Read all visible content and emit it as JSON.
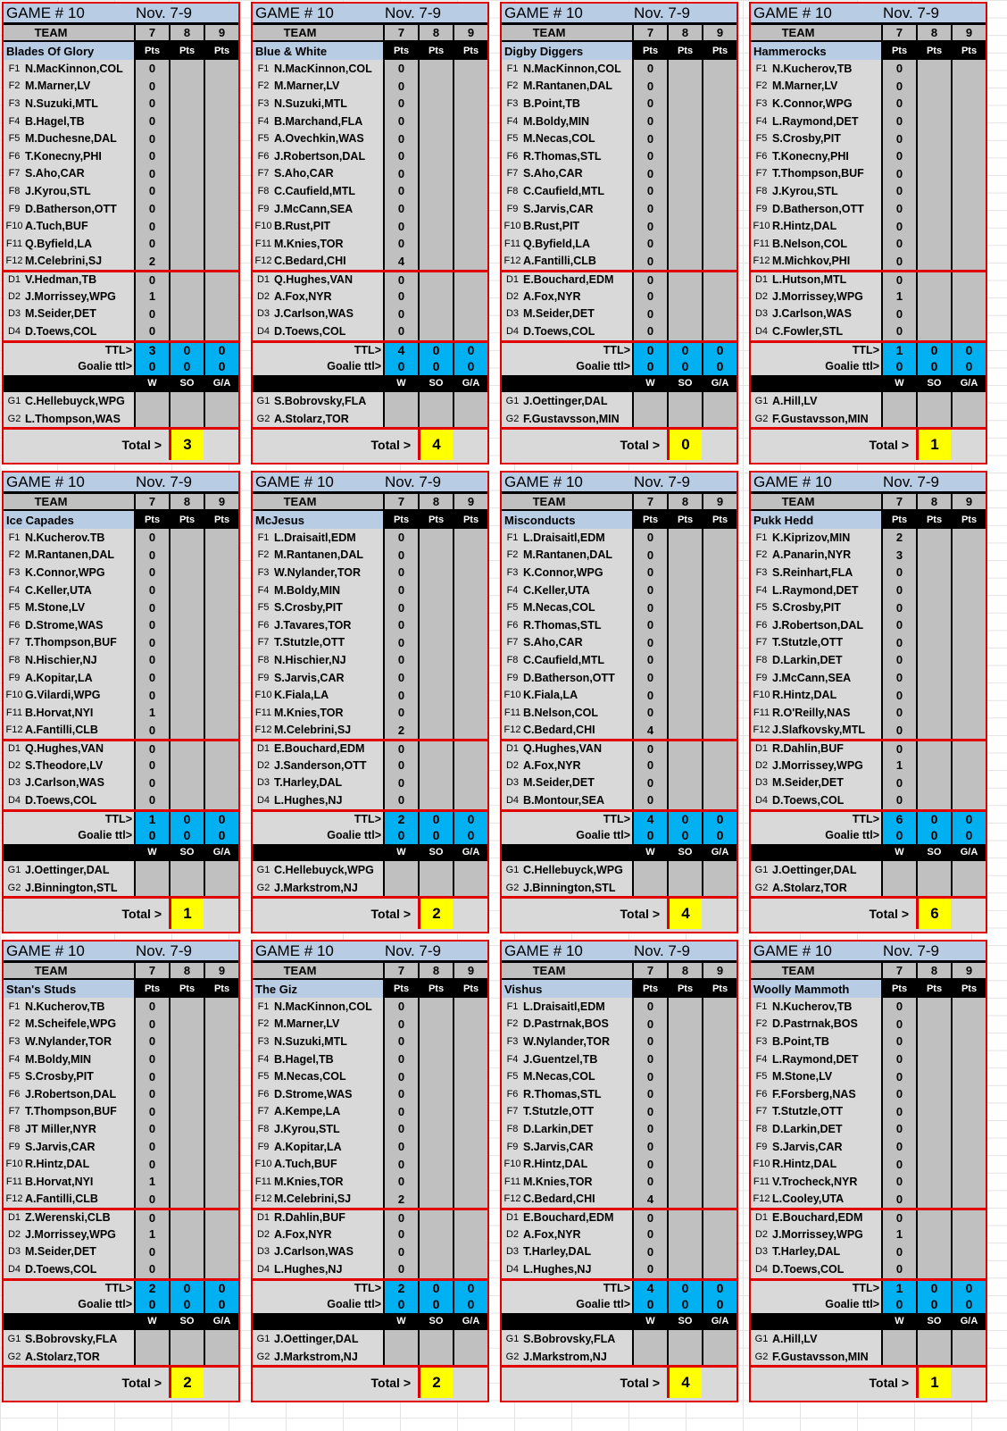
{
  "common": {
    "game": "GAME # 10",
    "dates": "Nov. 7-9",
    "team_header": "TEAM",
    "days": [
      "7",
      "8",
      "9"
    ],
    "pts_label": "Pts",
    "ttl_label": "TTL>",
    "goalie_ttl_label": "Goalie ttl>",
    "goalie_cols": [
      "W",
      "SO",
      "G/A"
    ],
    "total_label": "Total >",
    "forward_slots": [
      "F1",
      "F2",
      "F3",
      "F4",
      "F5",
      "F6",
      "F7",
      "F8",
      "F9",
      "F10",
      "F11",
      "F12"
    ],
    "defense_slots": [
      "D1",
      "D2",
      "D3",
      "D4"
    ],
    "goalie_slots": [
      "G1",
      "G2"
    ]
  },
  "colors": {
    "border": "#e00000",
    "title_bg": "#b8cce4",
    "ttl_bg": "#00b0f0",
    "total_bg": "#ffff00",
    "cell_bg": "#d9d9d9",
    "pts_bg": "#c0c0c0"
  },
  "teams": [
    {
      "name": "Blades Of Glory",
      "forwards": [
        "N.MacKinnon,COL",
        "M.Marner,LV",
        "N.Suzuki,MTL",
        "B.Hagel,TB",
        "M.Duchesne,DAL",
        "T.Konecny,PHI",
        "S.Aho,CAR",
        "J.Kyrou,STL",
        "D.Batherson,OTT",
        "A.Tuch,BUF",
        "Q.Byfield,LA",
        "M.Celebrini,SJ"
      ],
      "forward_pts": [
        "0",
        "0",
        "0",
        "0",
        "0",
        "0",
        "0",
        "0",
        "0",
        "0",
        "0",
        "2"
      ],
      "defense": [
        "V.Hedman,TB",
        "J.Morrissey,WPG",
        "M.Seider,DET",
        "D.Toews,COL"
      ],
      "defense_pts": [
        "0",
        "1",
        "0",
        "0"
      ],
      "ttl": [
        "3",
        "0",
        "0"
      ],
      "goalie_ttl": [
        "0",
        "0",
        "0"
      ],
      "goalies": [
        "C.Hellebuyck,WPG",
        "L.Thompson,WAS"
      ],
      "total": "3"
    },
    {
      "name": "Blue & White",
      "forwards": [
        "N.MacKinnon,COL",
        "M.Marner,LV",
        "N.Suzuki,MTL",
        "B.Marchand,FLA",
        "A.Ovechkin,WAS",
        "J.Robertson,DAL",
        "S.Aho,CAR",
        "C.Caufield,MTL",
        "J.McCann,SEA",
        "B.Rust,PIT",
        "M.Knies,TOR",
        "C.Bedard,CHI"
      ],
      "forward_pts": [
        "0",
        "0",
        "0",
        "0",
        "0",
        "0",
        "0",
        "0",
        "0",
        "0",
        "0",
        "4"
      ],
      "defense": [
        "Q.Hughes,VAN",
        "A.Fox,NYR",
        "J.Carlson,WAS",
        "D.Toews,COL"
      ],
      "defense_pts": [
        "0",
        "0",
        "0",
        "0"
      ],
      "ttl": [
        "4",
        "0",
        "0"
      ],
      "goalie_ttl": [
        "0",
        "0",
        "0"
      ],
      "goalies": [
        "S.Bobrovsky,FLA",
        "A.Stolarz,TOR"
      ],
      "total": "4"
    },
    {
      "name": "Digby Diggers",
      "forwards": [
        "N.MacKinnon,COL",
        "M.Rantanen,DAL",
        "B.Point,TB",
        "M.Boldy,MIN",
        "M.Necas,COL",
        "R.Thomas,STL",
        "S.Aho,CAR",
        "C.Caufield,MTL",
        "S.Jarvis,CAR",
        "B.Rust,PIT",
        "Q.Byfield,LA",
        "A.Fantilli,CLB"
      ],
      "forward_pts": [
        "0",
        "0",
        "0",
        "0",
        "0",
        "0",
        "0",
        "0",
        "0",
        "0",
        "0",
        "0"
      ],
      "defense": [
        "E.Bouchard,EDM",
        "A.Fox,NYR",
        "M.Seider,DET",
        "D.Toews,COL"
      ],
      "defense_pts": [
        "0",
        "0",
        "0",
        "0"
      ],
      "ttl": [
        "0",
        "0",
        "0"
      ],
      "goalie_ttl": [
        "0",
        "0",
        "0"
      ],
      "goalies": [
        "J.Oettinger,DAL",
        "F.Gustavsson,MIN"
      ],
      "total": "0"
    },
    {
      "name": "Hammerocks",
      "forwards": [
        "N.Kucherov,TB",
        "M.Marner,LV",
        "K.Connor,WPG",
        "L.Raymond,DET",
        "S.Crosby,PIT",
        "T.Konecny,PHI",
        "T.Thompson,BUF",
        "J.Kyrou,STL",
        "D.Batherson,OTT",
        "R.Hintz,DAL",
        "B.Nelson,COL",
        "M.Michkov,PHI"
      ],
      "forward_pts": [
        "0",
        "0",
        "0",
        "0",
        "0",
        "0",
        "0",
        "0",
        "0",
        "0",
        "0",
        "0"
      ],
      "defense": [
        "L.Hutson,MTL",
        "J.Morrissey,WPG",
        "J.Carlson,WAS",
        "C.Fowler,STL"
      ],
      "defense_pts": [
        "0",
        "1",
        "0",
        "0"
      ],
      "ttl": [
        "1",
        "0",
        "0"
      ],
      "goalie_ttl": [
        "0",
        "0",
        "0"
      ],
      "goalies": [
        "A.Hill,LV",
        "F.Gustavsson,MIN"
      ],
      "total": "1"
    },
    {
      "name": "Ice Capades",
      "forwards": [
        "N.Kucherov.TB",
        "M.Rantanen,DAL",
        "K.Connor,WPG",
        "C.Keller,UTA",
        "M.Stone,LV",
        "D.Strome,WAS",
        "T.Thompson,BUF",
        "N.Hischier,NJ",
        "A.Kopitar,LA",
        "G.Vilardi,WPG",
        "B.Horvat,NYI",
        "A.Fantilli,CLB"
      ],
      "forward_pts": [
        "0",
        "0",
        "0",
        "0",
        "0",
        "0",
        "0",
        "0",
        "0",
        "0",
        "1",
        "0"
      ],
      "defense": [
        "Q.Hughes,VAN",
        "S.Theodore,LV",
        "J.Carlson,WAS",
        "D.Toews,COL"
      ],
      "defense_pts": [
        "0",
        "0",
        "0",
        "0"
      ],
      "ttl": [
        "1",
        "0",
        "0"
      ],
      "goalie_ttl": [
        "0",
        "0",
        "0"
      ],
      "goalies": [
        "J.Oettinger,DAL",
        "J.Binnington,STL"
      ],
      "total": "1"
    },
    {
      "name": "McJesus",
      "forwards": [
        "L.Draisaitl,EDM",
        "M.Rantanen,DAL",
        "W.Nylander,TOR",
        "M.Boldy,MIN",
        "S.Crosby,PIT",
        "J.Tavares,TOR",
        "T.Stutzle,OTT",
        "N.Hischier,NJ",
        "S.Jarvis,CAR",
        "K.Fiala,LA",
        "M.Knies,TOR",
        "M.Celebrini,SJ"
      ],
      "forward_pts": [
        "0",
        "0",
        "0",
        "0",
        "0",
        "0",
        "0",
        "0",
        "0",
        "0",
        "0",
        "2"
      ],
      "defense": [
        "E.Bouchard,EDM",
        "J.Sanderson,OTT",
        "T.Harley,DAL",
        "L.Hughes,NJ"
      ],
      "defense_pts": [
        "0",
        "0",
        "0",
        "0"
      ],
      "ttl": [
        "2",
        "0",
        "0"
      ],
      "goalie_ttl": [
        "0",
        "0",
        "0"
      ],
      "goalies": [
        "C.Hellebuyck,WPG",
        "J.Markstrom,NJ"
      ],
      "total": "2"
    },
    {
      "name": "Misconducts",
      "forwards": [
        "L.Draisaitl,EDM",
        "M.Rantanen,DAL",
        "K.Connor,WPG",
        "C.Keller,UTA",
        "M.Necas,COL",
        "R.Thomas,STL",
        "S.Aho,CAR",
        "C.Caufield,MTL",
        "D.Batherson,OTT",
        "K.Fiala,LA",
        "B.Nelson,COL",
        "C.Bedard,CHI"
      ],
      "forward_pts": [
        "0",
        "0",
        "0",
        "0",
        "0",
        "0",
        "0",
        "0",
        "0",
        "0",
        "0",
        "4"
      ],
      "defense": [
        "Q.Hughes,VAN",
        "A.Fox,NYR",
        "M.Seider,DET",
        "B.Montour,SEA"
      ],
      "defense_pts": [
        "0",
        "0",
        "0",
        "0"
      ],
      "ttl": [
        "4",
        "0",
        "0"
      ],
      "goalie_ttl": [
        "0",
        "0",
        "0"
      ],
      "goalies": [
        "C.Hellebuyck,WPG",
        "J.Binnington,STL"
      ],
      "total": "4"
    },
    {
      "name": "Pukk Hedd",
      "forwards": [
        "K.Kiprizov,MIN",
        "A.Panarin,NYR",
        "S.Reinhart,FLA",
        "L.Raymond,DET",
        "S.Crosby,PIT",
        "J.Robertson,DAL",
        "T.Stutzle,OTT",
        "D.Larkin,DET",
        "J.McCann,SEA",
        "R.Hintz,DAL",
        "R.O'Reilly,NAS",
        "J.Slafkovsky,MTL"
      ],
      "forward_pts": [
        "2",
        "3",
        "0",
        "0",
        "0",
        "0",
        "0",
        "0",
        "0",
        "0",
        "0",
        "0"
      ],
      "defense": [
        "R.Dahlin,BUF",
        "J.Morrissey,WPG",
        "M.Seider,DET",
        "D.Toews,COL"
      ],
      "defense_pts": [
        "0",
        "1",
        "0",
        "0"
      ],
      "ttl": [
        "6",
        "0",
        "0"
      ],
      "goalie_ttl": [
        "0",
        "0",
        "0"
      ],
      "goalies": [
        "J.Oettinger,DAL",
        "A.Stolarz,TOR"
      ],
      "total": "6"
    },
    {
      "name": "Stan's Studs",
      "forwards": [
        "N.Kucherov,TB",
        "M.Scheifele,WPG",
        "W.Nylander,TOR",
        "M.Boldy,MIN",
        "S.Crosby,PIT",
        "J.Robertson,DAL",
        "T.Thompson,BUF",
        "JT Miller,NYR",
        "S.Jarvis,CAR",
        "R.Hintz,DAL",
        "B.Horvat,NYI",
        "A.Fantilli,CLB"
      ],
      "forward_pts": [
        "0",
        "0",
        "0",
        "0",
        "0",
        "0",
        "0",
        "0",
        "0",
        "0",
        "1",
        "0"
      ],
      "defense": [
        "Z.Werenski,CLB",
        "J.Morrissey,WPG",
        "M.Seider,DET",
        "D.Toews,COL"
      ],
      "defense_pts": [
        "0",
        "1",
        "0",
        "0"
      ],
      "ttl": [
        "2",
        "0",
        "0"
      ],
      "goalie_ttl": [
        "0",
        "0",
        "0"
      ],
      "goalies": [
        "S.Bobrovsky,FLA",
        "A.Stolarz,TOR"
      ],
      "total": "2"
    },
    {
      "name": "The Giz",
      "forwards": [
        "N.MacKinnon,COL",
        "M.Marner,LV",
        "N.Suzuki,MTL",
        "B.Hagel,TB",
        "M.Necas,COL",
        "D.Strome,WAS",
        "A.Kempe,LA",
        "J.Kyrou,STL",
        "A.Kopitar,LA",
        "A.Tuch,BUF",
        "M.Knies,TOR",
        "M.Celebrini,SJ"
      ],
      "forward_pts": [
        "0",
        "0",
        "0",
        "0",
        "0",
        "0",
        "0",
        "0",
        "0",
        "0",
        "0",
        "2"
      ],
      "defense": [
        "R.Dahlin,BUF",
        "A.Fox,NYR",
        "J.Carlson,WAS",
        "L.Hughes,NJ"
      ],
      "defense_pts": [
        "0",
        "0",
        "0",
        "0"
      ],
      "ttl": [
        "2",
        "0",
        "0"
      ],
      "goalie_ttl": [
        "0",
        "0",
        "0"
      ],
      "goalies": [
        "J.Oettinger,DAL",
        "J.Markstrom,NJ"
      ],
      "total": "2"
    },
    {
      "name": "Vishus",
      "forwards": [
        "L.Draisaitl,EDM",
        "D.Pastrnak,BOS",
        "W.Nylander,TOR",
        "J.Guentzel,TB",
        "M.Necas,COL",
        "R.Thomas,STL",
        "T.Stutzle,OTT",
        "D.Larkin,DET",
        "S.Jarvis,CAR",
        "R.Hintz,DAL",
        "M.Knies,TOR",
        "C.Bedard,CHI"
      ],
      "forward_pts": [
        "0",
        "0",
        "0",
        "0",
        "0",
        "0",
        "0",
        "0",
        "0",
        "0",
        "0",
        "4"
      ],
      "defense": [
        "E.Bouchard,EDM",
        "A.Fox,NYR",
        "T.Harley,DAL",
        "L.Hughes,NJ"
      ],
      "defense_pts": [
        "0",
        "0",
        "0",
        "0"
      ],
      "ttl": [
        "4",
        "0",
        "0"
      ],
      "goalie_ttl": [
        "0",
        "0",
        "0"
      ],
      "goalies": [
        "S.Bobrovsky,FLA",
        "J.Markstrom,NJ"
      ],
      "total": "4"
    },
    {
      "name": "Woolly Mammoth",
      "forwards": [
        "N.Kucherov,TB",
        "D.Pastrnak,BOS",
        "B.Point,TB",
        "L.Raymond,DET",
        "M.Stone,LV",
        "F.Forsberg,NAS",
        "T.Stutzle,OTT",
        "D.Larkin,DET",
        "S.Jarvis,CAR",
        "R.Hintz,DAL",
        "V.Trocheck,NYR",
        "L.Cooley,UTA"
      ],
      "forward_pts": [
        "0",
        "0",
        "0",
        "0",
        "0",
        "0",
        "0",
        "0",
        "0",
        "0",
        "0",
        "0"
      ],
      "defense": [
        "E.Bouchard,EDM",
        "J.Morrissey,WPG",
        "T.Harley,DAL",
        "D.Toews,COL"
      ],
      "defense_pts": [
        "0",
        "1",
        "0",
        "0"
      ],
      "ttl": [
        "1",
        "0",
        "0"
      ],
      "goalie_ttl": [
        "0",
        "0",
        "0"
      ],
      "goalies": [
        "A.Hill,LV",
        "F.Gustavsson,MIN"
      ],
      "total": "1"
    }
  ]
}
